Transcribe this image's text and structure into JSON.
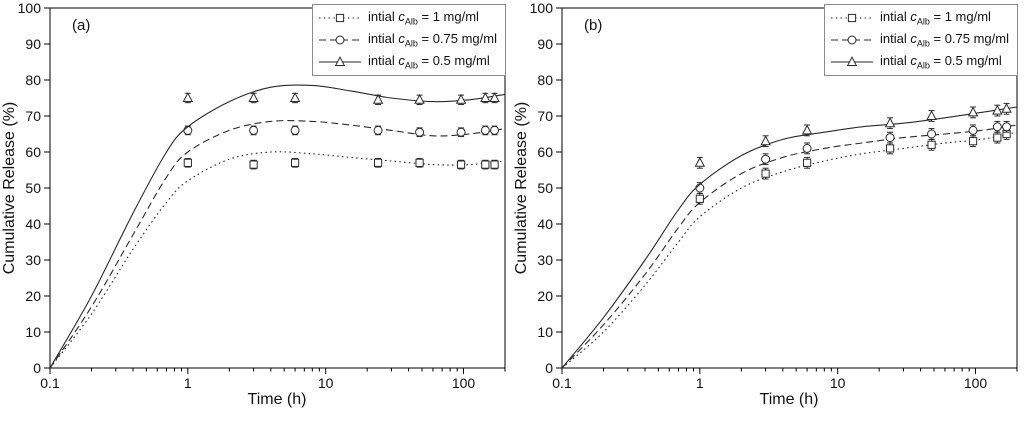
{
  "figure": {
    "background": "#ffffff",
    "axis_color": "#000000",
    "line_color": "#2a2a2a",
    "marker_fill": "#ffffff",
    "legend_border_color": "#8a8a8a"
  },
  "chart_data": [
    {
      "type": "line",
      "panel_label": "(a)",
      "xlabel": "Time (h)",
      "ylabel": "Cumulative Release (%)",
      "xscale": "log",
      "xlim": [
        0.1,
        200
      ],
      "ylim": [
        0,
        100
      ],
      "grid": false,
      "legend_position": "top-right",
      "x_major_ticks": [
        0.1,
        1,
        10,
        100
      ],
      "x_tick_labels": [
        "0.1",
        "1",
        "10",
        "100"
      ],
      "y_tick_step": 10,
      "series": [
        {
          "name_pre": "intial ",
          "name_var": "c",
          "name_sub": "Alb",
          "name_post": " = 1 mg/ml",
          "marker": "square",
          "line_style": "dotted",
          "error": 1.2,
          "points": [
            [
              1,
              57
            ],
            [
              3,
              56.5
            ],
            [
              6,
              57
            ],
            [
              24,
              57
            ],
            [
              48,
              57
            ],
            [
              96,
              56.5
            ],
            [
              144,
              56.5
            ],
            [
              168,
              56.5
            ]
          ],
          "curve": [
            [
              0.1,
              0
            ],
            [
              0.2,
              15
            ],
            [
              0.4,
              33
            ],
            [
              0.7,
              46
            ],
            [
              1,
              52
            ],
            [
              2,
              58
            ],
            [
              4,
              60
            ],
            [
              8,
              59.5
            ],
            [
              15,
              58.5
            ],
            [
              30,
              57.5
            ],
            [
              60,
              56.5
            ],
            [
              110,
              56.5
            ],
            [
              200,
              57.5
            ]
          ]
        },
        {
          "name_pre": "intial ",
          "name_var": "c",
          "name_sub": "Alb",
          "name_post": " = 0.75 mg/ml",
          "marker": "circle",
          "line_style": "dashed",
          "error": 1.2,
          "points": [
            [
              1,
              66
            ],
            [
              3,
              66
            ],
            [
              6,
              66
            ],
            [
              24,
              66
            ],
            [
              48,
              65.5
            ],
            [
              96,
              65.5
            ],
            [
              144,
              66
            ],
            [
              168,
              66
            ]
          ],
          "curve": [
            [
              0.1,
              0
            ],
            [
              0.2,
              17
            ],
            [
              0.4,
              37
            ],
            [
              0.7,
              53
            ],
            [
              1,
              60
            ],
            [
              2,
              66
            ],
            [
              4,
              68.5
            ],
            [
              8,
              68.5
            ],
            [
              15,
              67.5
            ],
            [
              30,
              66
            ],
            [
              60,
              64.5
            ],
            [
              110,
              65
            ],
            [
              200,
              66.5
            ]
          ]
        },
        {
          "name_pre": "intial ",
          "name_var": "c",
          "name_sub": "Alb",
          "name_post": " = 0.5 mg/ml",
          "marker": "triangle",
          "line_style": "solid",
          "error": 1.3,
          "points": [
            [
              1,
              75
            ],
            [
              3,
              75
            ],
            [
              6,
              75
            ],
            [
              24,
              74.5
            ],
            [
              48,
              74.5
            ],
            [
              96,
              74.5
            ],
            [
              144,
              75
            ],
            [
              168,
              75
            ]
          ],
          "curve": [
            [
              0.1,
              0
            ],
            [
              0.2,
              20
            ],
            [
              0.4,
              43
            ],
            [
              0.7,
              60
            ],
            [
              1,
              67
            ],
            [
              2,
              74
            ],
            [
              4,
              78
            ],
            [
              8,
              78.5
            ],
            [
              15,
              77
            ],
            [
              30,
              75
            ],
            [
              60,
              74
            ],
            [
              110,
              74.5
            ],
            [
              200,
              76
            ]
          ]
        }
      ]
    },
    {
      "type": "line",
      "panel_label": "(b)",
      "xlabel": "Time (h)",
      "ylabel": "Cumulative Release (%)",
      "xscale": "log",
      "xlim": [
        0.1,
        200
      ],
      "ylim": [
        0,
        100
      ],
      "grid": false,
      "legend_position": "top-right",
      "x_major_ticks": [
        0.1,
        1,
        10,
        100
      ],
      "x_tick_labels": [
        "0.1",
        "1",
        "10",
        "100"
      ],
      "y_tick_step": 10,
      "series": [
        {
          "name_pre": "intial ",
          "name_var": "c",
          "name_sub": "Alb",
          "name_post": " = 1 mg/ml",
          "marker": "square",
          "line_style": "dotted",
          "error": 1.5,
          "points": [
            [
              1,
              47
            ],
            [
              3,
              54
            ],
            [
              6,
              57
            ],
            [
              24,
              61
            ],
            [
              48,
              62
            ],
            [
              96,
              63
            ],
            [
              144,
              64
            ],
            [
              168,
              65
            ]
          ],
          "curve": [
            [
              0.1,
              0
            ],
            [
              0.2,
              10
            ],
            [
              0.4,
              23
            ],
            [
              0.7,
              35
            ],
            [
              1,
              42
            ],
            [
              2,
              50
            ],
            [
              4,
              54.5
            ],
            [
              8,
              57.5
            ],
            [
              15,
              59.5
            ],
            [
              30,
              61
            ],
            [
              60,
              62.5
            ],
            [
              110,
              63.5
            ],
            [
              200,
              65.5
            ]
          ]
        },
        {
          "name_pre": "intial ",
          "name_var": "c",
          "name_sub": "Alb",
          "name_post": " = 0.75 mg/ml",
          "marker": "circle",
          "line_style": "dashed",
          "error": 1.5,
          "points": [
            [
              1,
              50
            ],
            [
              3,
              58
            ],
            [
              6,
              61
            ],
            [
              24,
              64
            ],
            [
              48,
              65
            ],
            [
              96,
              66
            ],
            [
              144,
              67
            ],
            [
              168,
              67
            ]
          ],
          "curve": [
            [
              0.1,
              0
            ],
            [
              0.2,
              12
            ],
            [
              0.4,
              26
            ],
            [
              0.7,
              39
            ],
            [
              1,
              46
            ],
            [
              2,
              54
            ],
            [
              4,
              58.5
            ],
            [
              8,
              61
            ],
            [
              15,
              62.5
            ],
            [
              30,
              64
            ],
            [
              60,
              65
            ],
            [
              110,
              66
            ],
            [
              200,
              67.5
            ]
          ]
        },
        {
          "name_pre": "intial ",
          "name_var": "c",
          "name_sub": "Alb",
          "name_post": " = 0.5 mg/ml",
          "marker": "triangle",
          "line_style": "solid",
          "error": 1.5,
          "points": [
            [
              1,
              57
            ],
            [
              3,
              63
            ],
            [
              6,
              66
            ],
            [
              24,
              68
            ],
            [
              48,
              70
            ],
            [
              96,
              71
            ],
            [
              144,
              71.5
            ],
            [
              168,
              72
            ]
          ],
          "curve": [
            [
              0.1,
              0
            ],
            [
              0.2,
              14
            ],
            [
              0.4,
              30
            ],
            [
              0.7,
              44
            ],
            [
              1,
              51
            ],
            [
              2,
              59
            ],
            [
              4,
              63.5
            ],
            [
              8,
              65.5
            ],
            [
              15,
              67
            ],
            [
              30,
              68
            ],
            [
              60,
              69.5
            ],
            [
              110,
              71
            ],
            [
              200,
              72.5
            ]
          ]
        }
      ]
    }
  ]
}
